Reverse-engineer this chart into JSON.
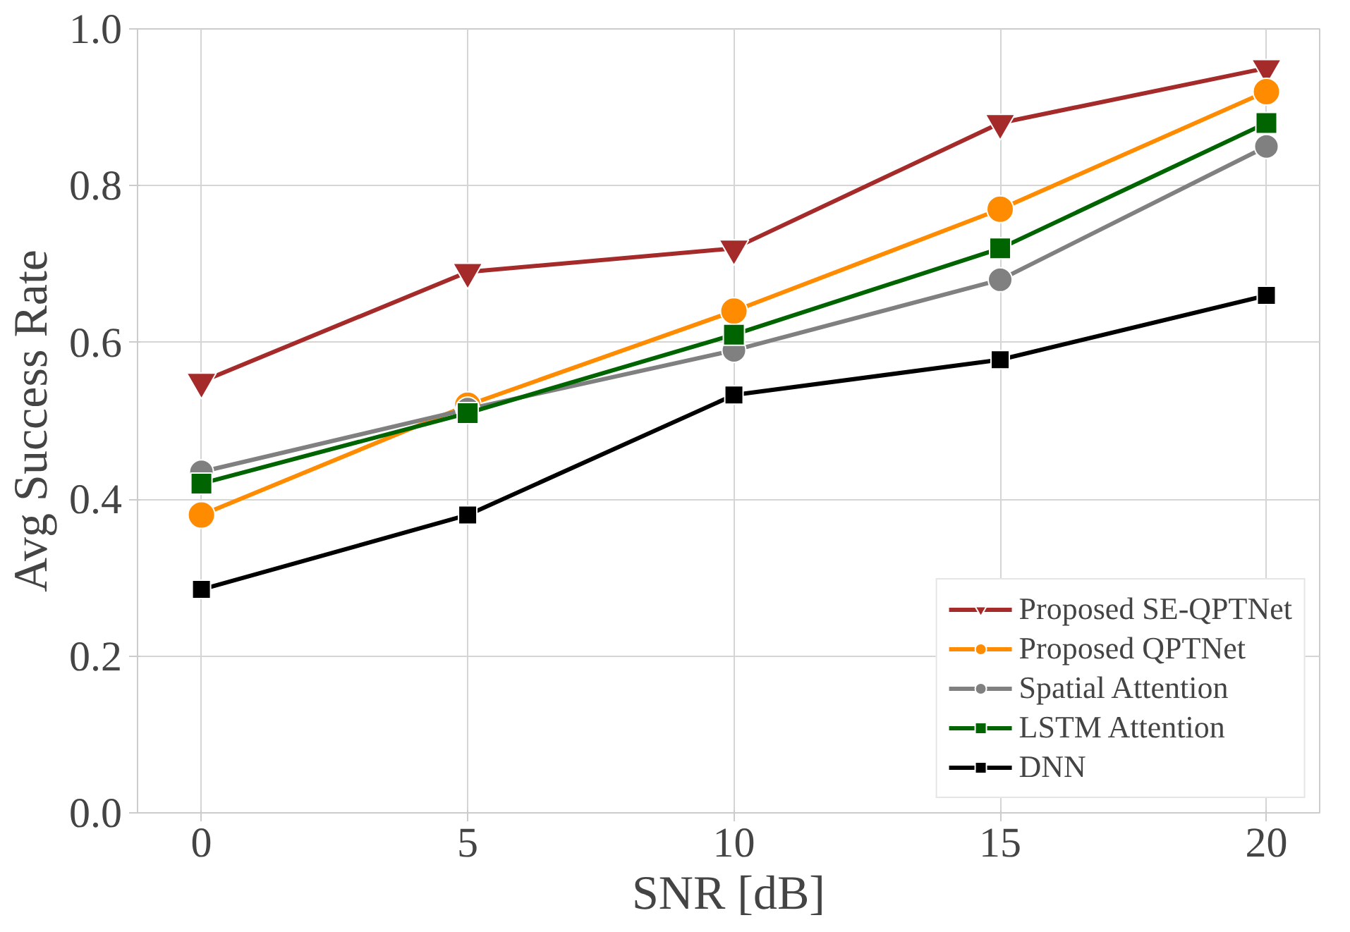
{
  "chart_data": {
    "type": "line",
    "xlabel": "SNR [dB]",
    "ylabel": "Avg Success Rate",
    "x": [
      0,
      5,
      10,
      15,
      20
    ],
    "series": [
      {
        "name": "Proposed SE-QPTNet",
        "color": "#a52a2a",
        "marker": "triangle",
        "values": [
          0.55,
          0.69,
          0.72,
          0.88,
          0.95
        ]
      },
      {
        "name": "Proposed QPTNet",
        "color": "#ff8c00",
        "marker": "circle",
        "values": [
          0.38,
          0.52,
          0.64,
          0.77,
          0.92
        ]
      },
      {
        "name": "Spatial Attention",
        "color": "#808080",
        "marker": "circle",
        "values": [
          0.435,
          0.515,
          0.59,
          0.68,
          0.85
        ]
      },
      {
        "name": "LSTM Attention",
        "color": "#006400",
        "marker": "square",
        "values": [
          0.42,
          0.51,
          0.61,
          0.72,
          0.88
        ]
      },
      {
        "name": "DNN",
        "color": "#000000",
        "marker": "square",
        "values": [
          0.285,
          0.38,
          0.533,
          0.578,
          0.66
        ]
      }
    ],
    "xlim": [
      -1.2,
      21.0
    ],
    "ylim": [
      0.0,
      1.0
    ],
    "xticks": [
      0,
      5,
      10,
      15,
      20
    ],
    "yticks": [
      {
        "value": 0.0,
        "label": "0.0"
      },
      {
        "value": 0.2,
        "label": "0.2"
      },
      {
        "value": 0.4,
        "label": "0.4"
      },
      {
        "value": 0.6,
        "label": "0.6"
      },
      {
        "value": 0.8,
        "label": "0.8"
      },
      {
        "value": 1.0,
        "label": "1.0"
      }
    ],
    "grid": true,
    "legend": "bottom right",
    "line_style": "solid"
  }
}
